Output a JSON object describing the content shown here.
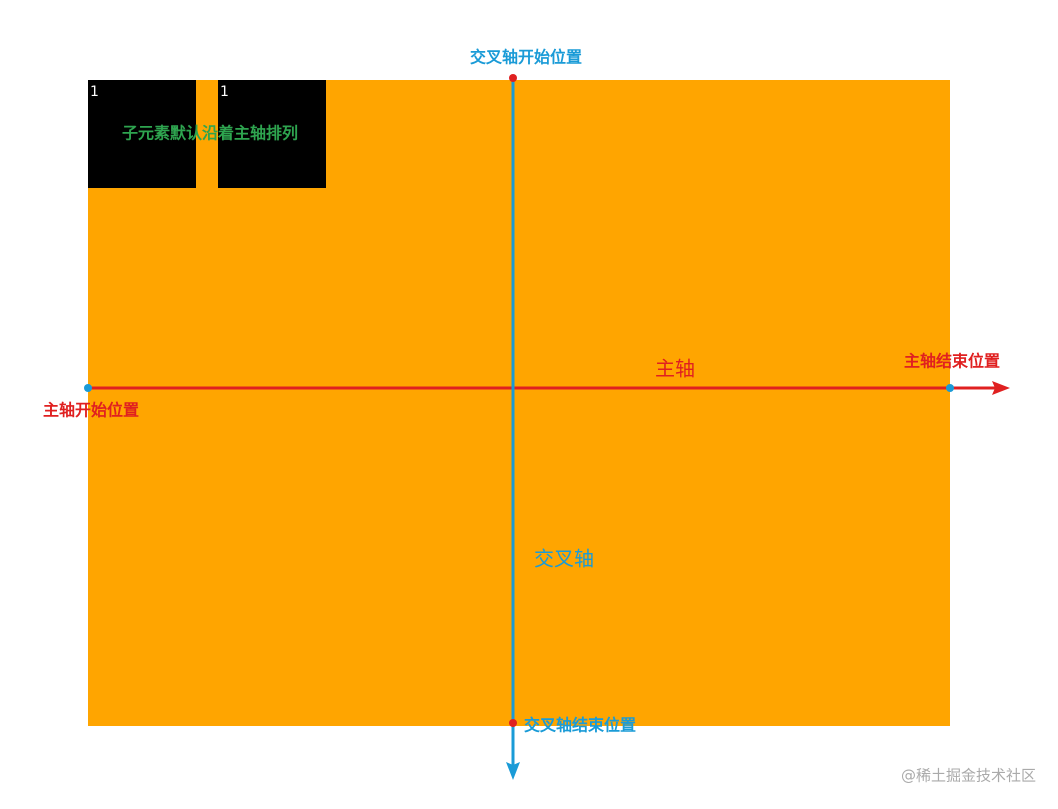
{
  "labels": {
    "cross_start": "交叉轴开始位置",
    "main_end": "主轴结束位置",
    "main_axis": "主轴",
    "main_start": "主轴开始位置",
    "cross_axis": "交叉轴",
    "cross_end": "交叉轴结束位置",
    "note": "子元素默认沿着主轴排列"
  },
  "items": [
    "1",
    "1"
  ],
  "watermark": "@稀土掘金技术社区"
}
